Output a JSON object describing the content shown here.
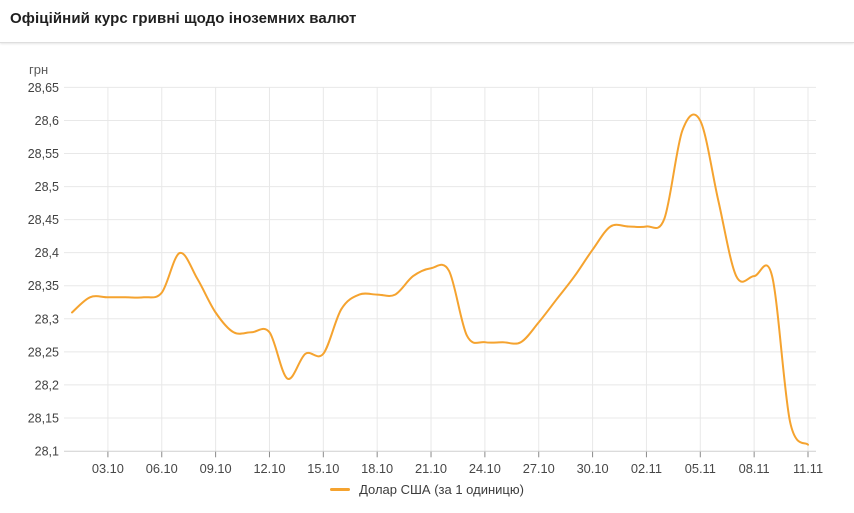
{
  "header": {
    "title": "Офіційний курс гривні щодо іноземних валют"
  },
  "chart": {
    "unit_label": "грн",
    "legend": {
      "label": "Долар США (за 1 одиницю)"
    },
    "colors": {
      "line": "#F5A32F",
      "grid": "#e8e8e8",
      "baseline": "#cfcfcf",
      "tick": "#8a8a8a",
      "axis_text": "#424242",
      "x_text": "#474747"
    }
  },
  "chart_data": {
    "type": "line",
    "title": "Офіційний курс гривні щодо іноземних валют",
    "xlabel": "",
    "ylabel": "грн",
    "ylim": [
      28.1,
      28.65
    ],
    "y_tick_step": 0.05,
    "grid": true,
    "legend_position": "bottom",
    "x": [
      "01.10",
      "02.10",
      "03.10",
      "04.10",
      "05.10",
      "06.10",
      "07.10",
      "08.10",
      "09.10",
      "10.10",
      "11.10",
      "12.10",
      "13.10",
      "14.10",
      "15.10",
      "16.10",
      "17.10",
      "18.10",
      "19.10",
      "20.10",
      "21.10",
      "22.10",
      "23.10",
      "24.10",
      "25.10",
      "26.10",
      "27.10",
      "28.10",
      "29.10",
      "30.10",
      "31.10",
      "01.11",
      "02.11",
      "03.11",
      "04.11",
      "05.11",
      "06.11",
      "07.11",
      "08.11",
      "09.11",
      "10.11",
      "11.11"
    ],
    "series": [
      {
        "name": "Долар США (за 1 одиницю)",
        "values": [
          28.31,
          28.333,
          28.333,
          28.333,
          28.333,
          28.34,
          28.4,
          28.36,
          28.31,
          28.28,
          28.28,
          28.28,
          28.21,
          28.2475,
          28.2475,
          28.315,
          28.337,
          28.337,
          28.337,
          28.365,
          28.377,
          28.373,
          28.275,
          28.265,
          28.265,
          28.265,
          28.295,
          28.33,
          28.365,
          28.405,
          28.44,
          28.44,
          28.44,
          28.452,
          28.585,
          28.6,
          28.48,
          28.365,
          28.365,
          28.365,
          28.145,
          28.11
        ]
      }
    ],
    "x_tick_labels": [
      "03.10",
      "06.10",
      "09.10",
      "12.10",
      "15.10",
      "18.10",
      "21.10",
      "24.10",
      "27.10",
      "30.10",
      "02.11",
      "05.11",
      "08.11",
      "11.11"
    ],
    "y_tick_labels_top_down": [
      "28,65",
      "28,6",
      "28,55",
      "28,5",
      "28,45",
      "28,4",
      "28,35",
      "28,3",
      "28,25",
      "28,2",
      "28,15",
      "28,1"
    ]
  }
}
